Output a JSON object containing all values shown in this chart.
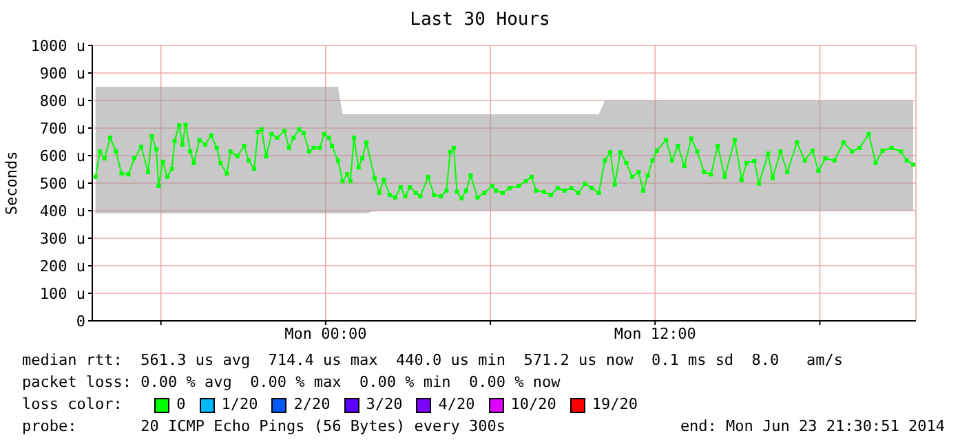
{
  "chart_data": {
    "type": "line",
    "title": "Last 30 Hours",
    "ylabel": "Seconds",
    "xlim": [
      "2014-06-22T15:30",
      "2014-06-23T21:30"
    ],
    "xticks": [
      {
        "value": "2014-06-22T18:00",
        "label": null
      },
      {
        "value": "2014-06-23T00:00",
        "label": "Mon 00:00"
      },
      {
        "value": "2014-06-23T06:00",
        "label": null
      },
      {
        "value": "2014-06-23T12:00",
        "label": "Mon 12:00"
      },
      {
        "value": "2014-06-23T18:00",
        "label": null
      }
    ],
    "ylim": [
      0,
      1000
    ],
    "yticks": [
      0,
      {
        "value": 100,
        "label": "100 u"
      },
      {
        "value": 200,
        "label": "200 u"
      },
      {
        "value": 300,
        "label": "300 u"
      },
      {
        "value": 400,
        "label": "400 u"
      },
      {
        "value": 500,
        "label": "500 u"
      },
      {
        "value": 600,
        "label": "600 u"
      },
      {
        "value": 700,
        "label": "700 u"
      },
      {
        "value": 800,
        "label": "800 u"
      },
      {
        "value": 900,
        "label": "900 u"
      },
      {
        "value": 1000,
        "label": "1000 u"
      }
    ],
    "grid": true,
    "legend": "bottom",
    "legend_title": "loss color:",
    "marker": "square",
    "line_style": "solid",
    "series": [
      {
        "name": "0",
        "color": "#00ff00",
        "x": [
          "2014-06-22T15:37",
          "2014-06-22T15:47",
          "2014-06-22T15:57",
          "2014-06-22T16:09",
          "2014-06-22T16:22",
          "2014-06-22T16:34",
          "2014-06-22T16:49",
          "2014-06-22T17:02",
          "2014-06-22T17:17",
          "2014-06-22T17:32",
          "2014-06-22T17:40",
          "2014-06-22T17:50",
          "2014-06-22T17:55",
          "2014-06-22T18:04",
          "2014-06-22T18:14",
          "2014-06-22T18:24",
          "2014-06-22T18:30",
          "2014-06-22T18:40",
          "2014-06-22T18:47",
          "2014-06-22T18:54",
          "2014-06-22T19:04",
          "2014-06-22T19:12",
          "2014-06-22T19:24",
          "2014-06-22T19:37",
          "2014-06-22T19:50",
          "2014-06-22T20:02",
          "2014-06-22T20:10",
          "2014-06-22T20:24",
          "2014-06-22T20:32",
          "2014-06-22T20:47",
          "2014-06-22T21:02",
          "2014-06-22T21:12",
          "2014-06-22T21:24",
          "2014-06-22T21:32",
          "2014-06-22T21:40",
          "2014-06-22T21:50",
          "2014-06-22T22:02",
          "2014-06-22T22:14",
          "2014-06-22T22:30",
          "2014-06-22T22:40",
          "2014-06-22T22:50",
          "2014-06-22T23:02",
          "2014-06-22T23:12",
          "2014-06-22T23:24",
          "2014-06-22T23:34",
          "2014-06-22T23:47",
          "2014-06-22T23:57",
          "2014-06-23T00:07",
          "2014-06-23T00:14",
          "2014-06-23T00:27",
          "2014-06-23T00:37",
          "2014-06-23T00:47",
          "2014-06-23T00:54",
          "2014-06-23T01:02",
          "2014-06-23T01:12",
          "2014-06-23T01:20",
          "2014-06-23T01:29",
          "2014-06-23T01:47",
          "2014-06-23T01:57",
          "2014-06-23T02:07",
          "2014-06-23T02:20",
          "2014-06-23T02:32",
          "2014-06-23T02:44",
          "2014-06-23T02:54",
          "2014-06-23T03:04",
          "2014-06-23T03:17",
          "2014-06-23T03:27",
          "2014-06-23T03:44",
          "2014-06-23T03:57",
          "2014-06-23T04:12",
          "2014-06-23T04:24",
          "2014-06-23T04:32",
          "2014-06-23T04:40",
          "2014-06-23T04:47",
          "2014-06-23T04:57",
          "2014-06-23T05:07",
          "2014-06-23T05:17",
          "2014-06-23T05:32",
          "2014-06-23T05:47",
          "2014-06-23T06:04",
          "2014-06-23T06:12",
          "2014-06-23T06:27",
          "2014-06-23T06:42",
          "2014-06-23T07:02",
          "2014-06-23T07:17",
          "2014-06-23T07:30",
          "2014-06-23T07:40",
          "2014-06-23T07:57",
          "2014-06-23T08:12",
          "2014-06-23T08:27",
          "2014-06-23T08:42",
          "2014-06-23T08:57",
          "2014-06-23T09:12",
          "2014-06-23T09:27",
          "2014-06-23T09:42",
          "2014-06-23T09:57",
          "2014-06-23T10:10",
          "2014-06-23T10:22",
          "2014-06-23T10:32",
          "2014-06-23T10:44",
          "2014-06-23T10:57",
          "2014-06-23T11:10",
          "2014-06-23T11:24",
          "2014-06-23T11:34",
          "2014-06-23T11:44",
          "2014-06-23T11:54",
          "2014-06-23T12:04",
          "2014-06-23T12:24",
          "2014-06-23T12:37",
          "2014-06-23T12:50",
          "2014-06-23T13:04",
          "2014-06-23T13:19",
          "2014-06-23T13:32",
          "2014-06-23T13:47",
          "2014-06-23T14:02",
          "2014-06-23T14:17",
          "2014-06-23T14:32",
          "2014-06-23T14:54",
          "2014-06-23T15:09",
          "2014-06-23T15:20",
          "2014-06-23T15:37",
          "2014-06-23T15:47",
          "2014-06-23T16:07",
          "2014-06-23T16:17",
          "2014-06-23T16:34",
          "2014-06-23T16:49",
          "2014-06-23T17:10",
          "2014-06-23T17:27",
          "2014-06-23T17:44",
          "2014-06-23T17:57",
          "2014-06-23T18:12",
          "2014-06-23T18:32",
          "2014-06-23T18:52",
          "2014-06-23T19:10",
          "2014-06-23T19:27",
          "2014-06-23T19:47",
          "2014-06-23T20:02",
          "2014-06-23T20:17",
          "2014-06-23T20:37",
          "2014-06-23T20:57",
          "2014-06-23T21:10",
          "2014-06-23T21:24"
        ],
        "values": [
          523,
          615,
          590,
          665,
          615,
          535,
          532,
          590,
          632,
          540,
          670,
          623,
          490,
          578,
          523,
          552,
          653,
          710,
          640,
          712,
          615,
          573,
          657,
          640,
          673,
          628,
          573,
          535,
          615,
          598,
          635,
          582,
          552,
          685,
          695,
          598,
          678,
          665,
          690,
          628,
          665,
          695,
          682,
          615,
          628,
          628,
          678,
          665,
          635,
          582,
          507,
          532,
          507,
          665,
          557,
          590,
          648,
          518,
          465,
          512,
          457,
          448,
          485,
          452,
          485,
          465,
          452,
          523,
          457,
          452,
          473,
          612,
          628,
          468,
          445,
          473,
          528,
          448,
          465,
          490,
          473,
          465,
          482,
          490,
          507,
          523,
          473,
          468,
          457,
          482,
          473,
          482,
          465,
          498,
          482,
          465,
          582,
          612,
          495,
          612,
          573,
          523,
          540,
          473,
          528,
          582,
          618,
          657,
          582,
          635,
          562,
          662,
          615,
          540,
          532,
          635,
          523,
          657,
          512,
          573,
          580,
          498,
          607,
          518,
          615,
          540,
          648,
          582,
          618,
          545,
          590,
          582,
          648,
          615,
          628,
          678,
          573,
          618,
          628,
          615,
          582,
          567
        ],
        "lower": [
          390,
          390,
          390,
          390,
          390,
          390,
          390,
          390,
          390,
          390,
          390,
          390,
          390,
          390,
          390,
          390,
          390,
          390,
          390,
          390,
          390,
          390,
          390,
          390,
          390,
          390,
          390,
          390,
          390,
          390,
          390,
          390,
          390,
          390,
          390,
          390,
          390,
          390,
          390,
          390,
          390,
          390,
          390,
          390,
          390,
          390,
          390,
          390,
          390,
          390,
          390,
          390,
          390,
          390,
          390,
          390,
          390,
          400,
          400,
          400,
          400,
          400,
          400,
          400,
          400,
          400,
          400,
          400,
          400,
          400,
          400,
          400,
          400,
          400,
          400,
          400,
          400,
          400,
          400,
          400,
          400,
          400,
          400,
          400,
          400,
          400,
          400,
          400,
          400,
          400,
          400,
          400,
          400,
          400,
          400,
          400,
          400,
          400,
          400,
          400,
          400,
          400,
          400,
          400,
          400,
          400,
          400,
          400,
          400,
          400,
          400,
          400,
          400,
          400,
          400,
          400,
          400,
          400,
          400,
          400,
          400,
          400,
          400,
          400,
          400,
          400,
          400,
          400,
          400,
          400,
          400,
          400,
          400,
          400,
          400,
          400,
          400,
          400,
          400,
          400,
          400,
          400
        ],
        "upper": [
          850,
          850,
          850,
          850,
          850,
          850,
          850,
          850,
          850,
          850,
          850,
          850,
          850,
          850,
          850,
          850,
          850,
          850,
          850,
          850,
          850,
          850,
          850,
          850,
          850,
          850,
          850,
          850,
          850,
          850,
          850,
          850,
          850,
          850,
          850,
          850,
          850,
          850,
          850,
          850,
          850,
          850,
          850,
          850,
          850,
          850,
          850,
          850,
          850,
          850,
          750,
          750,
          750,
          750,
          750,
          750,
          750,
          750,
          750,
          750,
          750,
          750,
          750,
          750,
          750,
          750,
          750,
          750,
          750,
          750,
          750,
          750,
          750,
          750,
          750,
          750,
          750,
          750,
          750,
          750,
          750,
          750,
          750,
          750,
          750,
          750,
          750,
          750,
          750,
          750,
          750,
          750,
          750,
          750,
          750,
          750,
          800,
          800,
          800,
          800,
          800,
          800,
          800,
          800,
          800,
          800,
          800,
          800,
          800,
          800,
          800,
          800,
          800,
          800,
          800,
          800,
          800,
          800,
          800,
          800,
          800,
          800,
          800,
          800,
          800,
          800,
          800,
          800,
          800,
          800,
          800,
          800,
          800,
          800,
          800,
          800,
          800,
          800,
          800,
          800,
          800,
          800
        ]
      },
      {
        "name": "1/20",
        "color": "#00b8ff"
      },
      {
        "name": "2/20",
        "color": "#0059ff"
      },
      {
        "name": "3/20",
        "color": "#5e00ff"
      },
      {
        "name": "4/20",
        "color": "#7e00ff"
      },
      {
        "name": "10/20",
        "color": "#dd00ff"
      },
      {
        "name": "19/20",
        "color": "#ff0000"
      }
    ],
    "annotations": [
      "median rtt:  561.3 us avg  714.4 us max  440.0 us min  571.2 us now  0.1 ms sd  8.0   am/s",
      "packet loss: 0.00 % avg  0.00 % max  0.00 % min  0.00 % now",
      "probe:       20 ICMP Echo Pings (56 Bytes) every 300s",
      "end: Mon Jun 23 21:30:51 2014"
    ]
  }
}
